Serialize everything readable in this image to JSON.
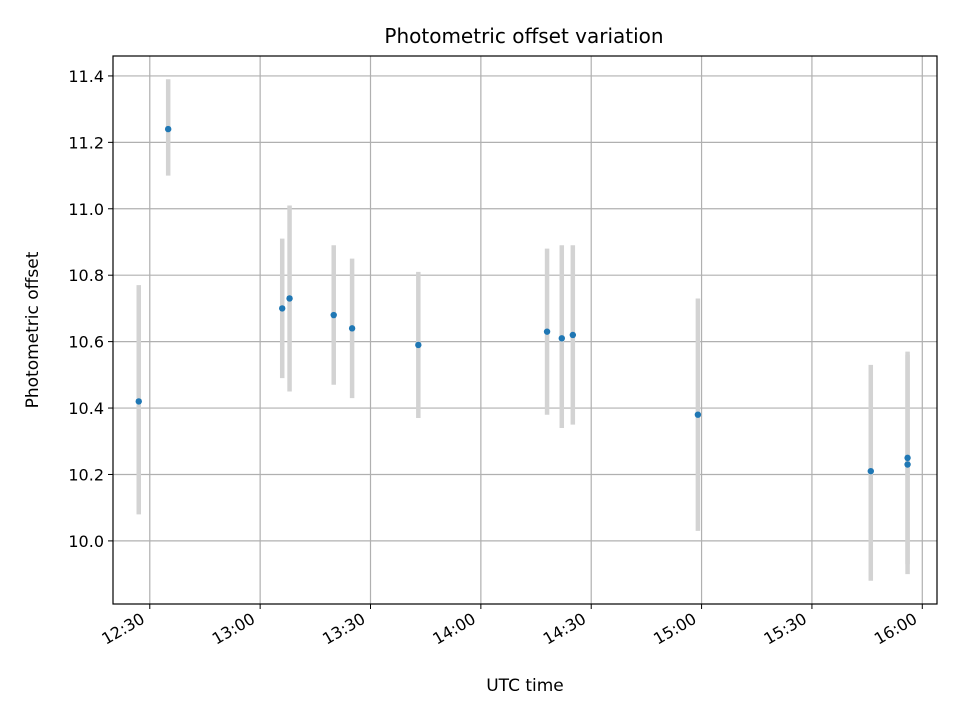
{
  "chart_data": {
    "type": "scatter",
    "title": "Photometric offset variation",
    "xlabel": "UTC time",
    "ylabel": "Photometric offset",
    "x_axis": "time (HH:MM UTC)",
    "xlim": [
      "12:20",
      "16:04"
    ],
    "ylim": [
      9.81,
      11.46
    ],
    "grid": true,
    "x_ticks": [
      "12:30",
      "13:00",
      "13:30",
      "14:00",
      "14:30",
      "15:00",
      "15:30",
      "16:00"
    ],
    "y_ticks": [
      "10.0",
      "10.2",
      "10.4",
      "10.6",
      "10.8",
      "11.0",
      "11.2",
      "11.4"
    ],
    "marker_color": "#1f77b4",
    "errorbar_color": "#d3d3d3",
    "points": [
      {
        "time": "12:27",
        "y": 10.42,
        "ylow": 10.08,
        "yhigh": 10.77
      },
      {
        "time": "12:35",
        "y": 11.24,
        "ylow": 11.1,
        "yhigh": 11.39
      },
      {
        "time": "13:06",
        "y": 10.7,
        "ylow": 10.49,
        "yhigh": 10.91
      },
      {
        "time": "13:08",
        "y": 10.73,
        "ylow": 10.45,
        "yhigh": 11.01
      },
      {
        "time": "13:20",
        "y": 10.68,
        "ylow": 10.47,
        "yhigh": 10.89
      },
      {
        "time": "13:25",
        "y": 10.64,
        "ylow": 10.43,
        "yhigh": 10.85
      },
      {
        "time": "13:43",
        "y": 10.59,
        "ylow": 10.37,
        "yhigh": 10.81
      },
      {
        "time": "14:18",
        "y": 10.63,
        "ylow": 10.38,
        "yhigh": 10.88
      },
      {
        "time": "14:22",
        "y": 10.61,
        "ylow": 10.34,
        "yhigh": 10.89
      },
      {
        "time": "14:25",
        "y": 10.62,
        "ylow": 10.35,
        "yhigh": 10.89
      },
      {
        "time": "14:59",
        "y": 10.38,
        "ylow": 10.03,
        "yhigh": 10.73
      },
      {
        "time": "15:46",
        "y": 10.21,
        "ylow": 9.88,
        "yhigh": 10.53
      },
      {
        "time": "15:56",
        "y": 10.25,
        "ylow": 9.93,
        "yhigh": 10.57
      },
      {
        "time": "15:56",
        "y": 10.23,
        "ylow": 9.9,
        "yhigh": 10.56
      }
    ]
  }
}
